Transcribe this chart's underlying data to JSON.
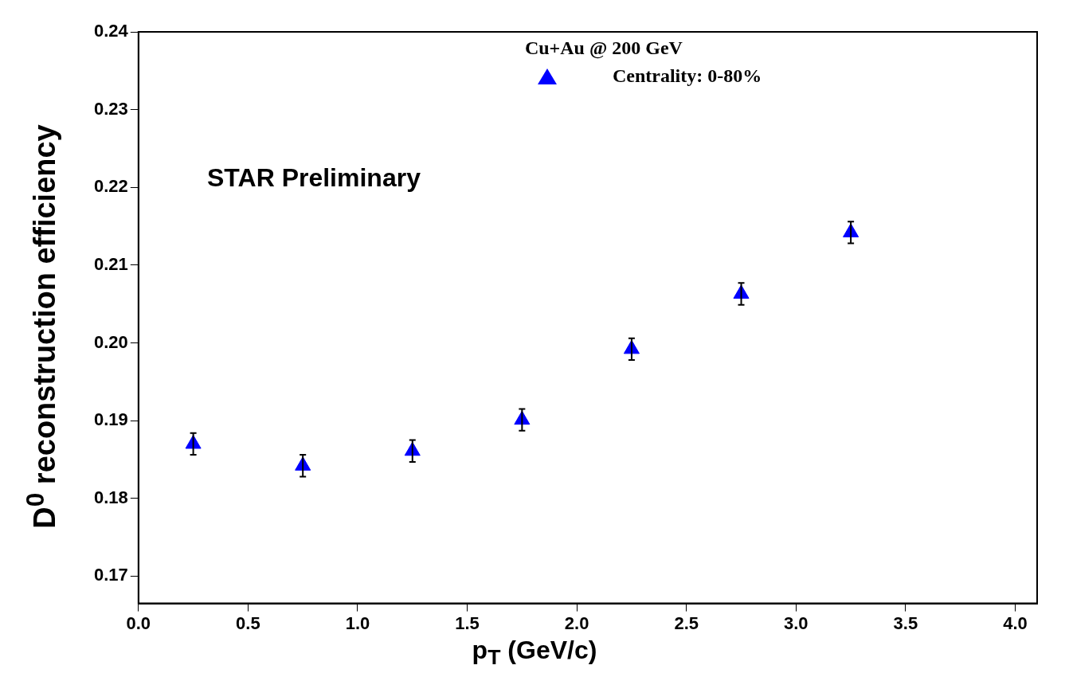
{
  "chart_data": {
    "type": "scatter",
    "xlabel": "p$_{T}$ (GeV/c)",
    "ylabel": "D$^{0}$ reconstruction efficiency",
    "legend_title": "Cu+Au @ 200 GeV",
    "annotations": [
      "STAR Preliminary"
    ],
    "x": [
      0.25,
      0.75,
      1.25,
      1.75,
      2.25,
      2.75,
      3.25
    ],
    "series": [
      {
        "name": "Centrality: 0-80%",
        "color": "#0000ff",
        "values": [
          0.187,
          0.1842,
          0.1861,
          0.1901,
          0.1992,
          0.2063,
          0.2142
        ],
        "errors": [
          0.0014,
          0.0014,
          0.0014,
          0.0014,
          0.0014,
          0.0014,
          0.0014
        ]
      }
    ],
    "xlim": [
      0,
      4.1
    ],
    "xticks": [
      {
        "value": 0,
        "label": "0.0"
      },
      0.5,
      {
        "value": 1,
        "label": "1.0"
      },
      1.5,
      {
        "value": 2,
        "label": "2.0"
      },
      2.5,
      {
        "value": 3,
        "label": "3.0"
      },
      3.5,
      {
        "value": 4,
        "label": "4.0"
      }
    ],
    "ylim": [
      0.1665,
      0.24
    ],
    "yticks": [
      0.17,
      0.18,
      0.19,
      {
        "value": 0.2,
        "label": "0.20"
      },
      0.21,
      0.22,
      0.23,
      0.24
    ],
    "grid": false,
    "legend": "top",
    "marker": "triangle"
  }
}
